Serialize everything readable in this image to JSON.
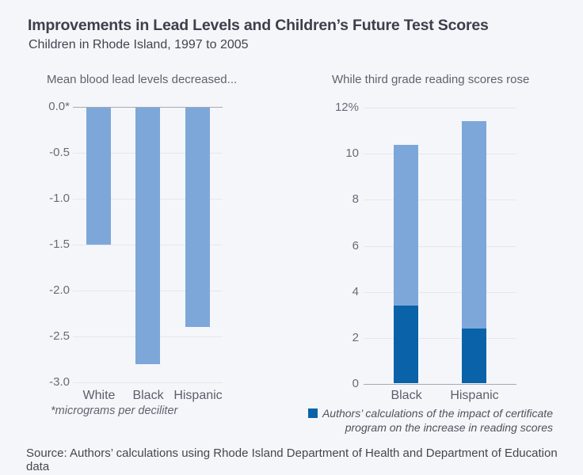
{
  "page": {
    "title": "Improvements in Lead Levels and Children’s Future Test Scores",
    "subtitle": "Children in Rhode Island, 1997 to 2005",
    "source_note": "Source: Authors’ calculations using Rhode Island Department of Health and Department of Education data"
  },
  "colors": {
    "background": "#f5f6fa",
    "bar_light_blue": "#7da7d9",
    "bar_dark_blue": "#0a63a8",
    "gridline": "#e6e7eb",
    "axis_line": "#a6aab2",
    "heading_text": "#3b404a",
    "muted_text": "#5d636d"
  },
  "chart_data": [
    {
      "type": "bar",
      "title": "Mean blood lead levels decreased...",
      "categories": [
        "White",
        "Black",
        "Hispanic"
      ],
      "values": [
        -1.5,
        -2.8,
        -2.4
      ],
      "ylim": [
        -3.0,
        0.0
      ],
      "yticks": [
        0,
        -0.5,
        -1,
        -1.5,
        -2,
        -2.5,
        -3
      ],
      "ytick_labels": [
        "0.0*",
        "-0.5",
        "-1.0",
        "-1.5",
        "-2.0",
        "-2.5",
        "-3.0"
      ],
      "footnote": "*micrograms per deciliter",
      "bar_color": "#7da7d9",
      "grid": true,
      "legend_position": "none",
      "unit_note": "micrograms per deciliter"
    },
    {
      "type": "stacked-bar",
      "title": "While third grade reading scores rose",
      "categories": [
        "Black",
        "Hispanic"
      ],
      "total_values": [
        10.4,
        11.4
      ],
      "impact_values": [
        3.4,
        2.4
      ],
      "total_color": "#7da7d9",
      "impact_color": "#0a63a8",
      "legend_label": "Authors’ calculations of the impact of certificate program on the increase in reading scores",
      "ylim": [
        0,
        12
      ],
      "yticks": [
        12,
        10,
        8,
        6,
        4,
        2,
        0
      ],
      "ytick_labels": [
        "12%",
        "10",
        "8",
        "6",
        "4",
        "2",
        "0"
      ],
      "grid": true,
      "legend_position": "bottom"
    }
  ]
}
